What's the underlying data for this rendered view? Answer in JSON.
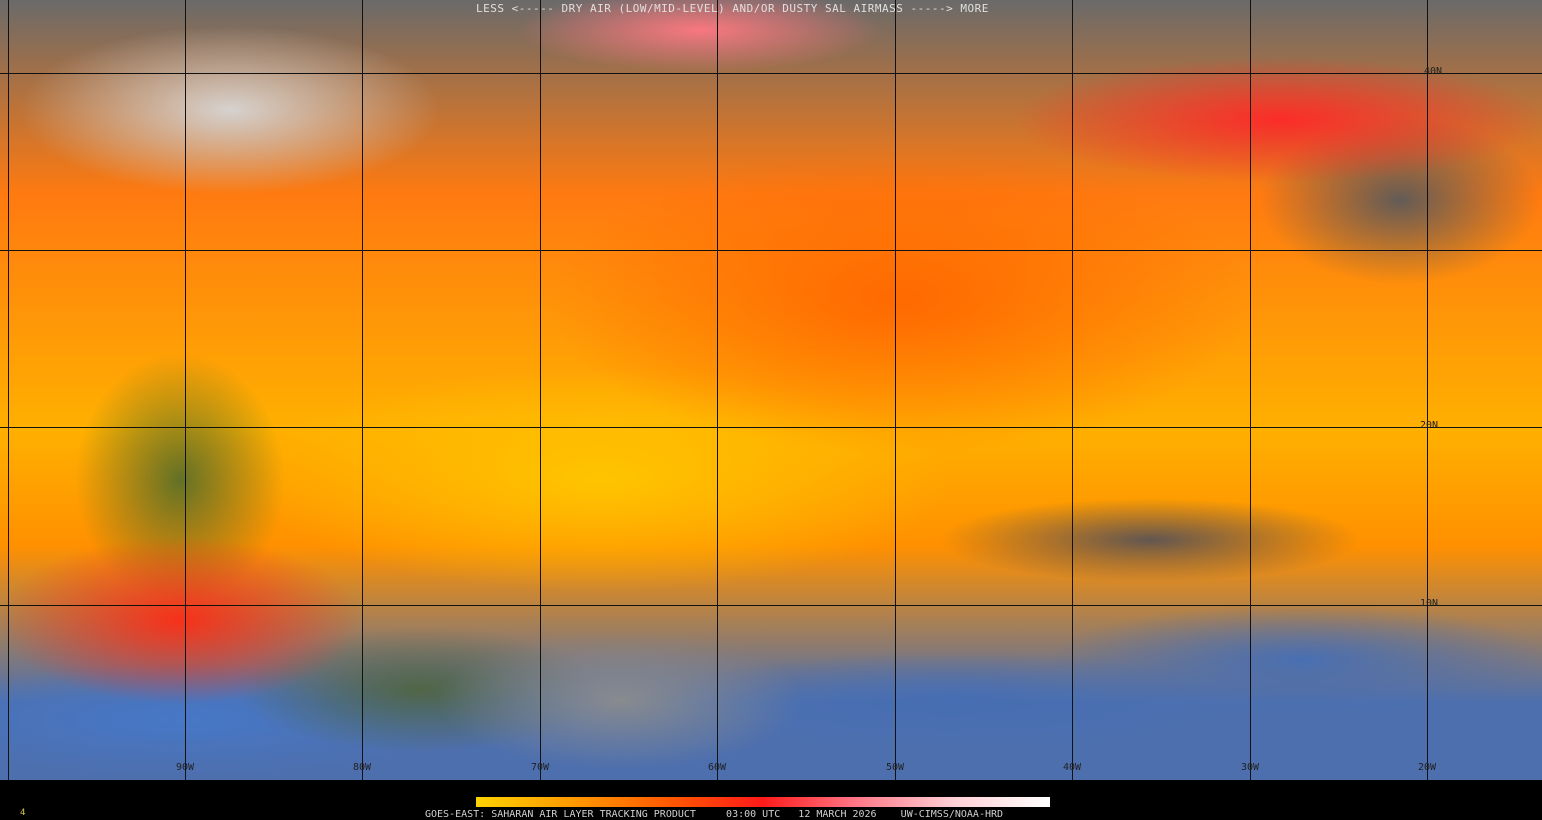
{
  "map": {
    "longitude_labels": [
      "90W",
      "80W",
      "70W",
      "60W",
      "50W",
      "40W",
      "30W",
      "20W"
    ],
    "latitude_labels": [
      "40N",
      "20N",
      "10N"
    ]
  },
  "legend": {
    "title": "LESS <----- DRY AIR (LOW/MID-LEVEL) AND/OR DUSTY SAL AIRMASS -----> MORE",
    "colorbar_colors": [
      "#ffd200",
      "#ff9a00",
      "#ff5a00",
      "#ff1a1a",
      "#ff7a8a",
      "#ffd0d6",
      "#ffffff"
    ]
  },
  "footer": {
    "product": "GOES-EAST: SAHARAN AIR LAYER TRACKING PRODUCT",
    "time": "03:00 UTC",
    "date": "12 MARCH 2026",
    "credit": "UW-CIMSS/NOAA-HRD",
    "frame": "4"
  }
}
